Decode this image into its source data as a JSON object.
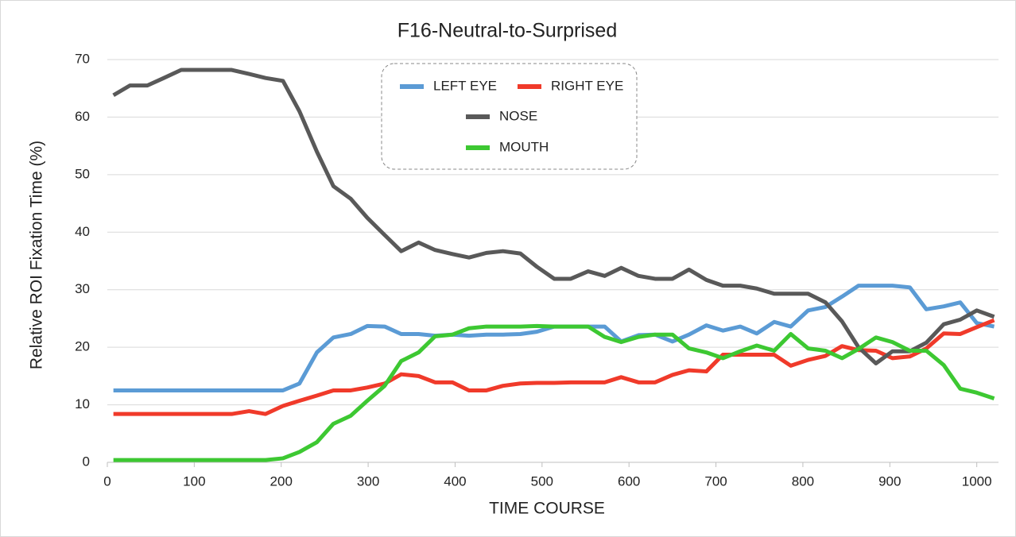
{
  "chart_data": {
    "type": "line",
    "title": "F16-Neutral-to-Surprised",
    "x_label": "TIME  COURSE",
    "y_label": "Relative  ROI  Fixation  Time  (%)",
    "x": [
      7,
      26,
      46,
      65,
      85,
      104,
      124,
      143,
      163,
      182,
      202,
      221,
      241,
      260,
      280,
      299,
      319,
      338,
      358,
      377,
      397,
      416,
      436,
      455,
      475,
      494,
      514,
      533,
      553,
      572,
      591,
      611,
      630,
      650,
      669,
      689,
      708,
      728,
      747,
      767,
      786,
      806,
      826,
      845,
      864,
      884,
      903,
      923,
      942,
      962,
      981,
      1000,
      1020
    ],
    "series": [
      {
        "name": "LEFT EYE",
        "color": "#5b9bd5",
        "values": [
          12.5,
          12.5,
          12.5,
          12.5,
          12.5,
          12.5,
          12.5,
          12.5,
          12.5,
          12.5,
          12.5,
          13.7,
          19.1,
          21.7,
          22.3,
          23.7,
          23.6,
          22.3,
          22.3,
          22,
          22.2,
          22,
          22.2,
          22.2,
          22.3,
          22.7,
          23.6,
          23.6,
          23.6,
          23.6,
          21,
          22.1,
          22.2,
          21,
          22.2,
          23.8,
          22.9,
          23.6,
          22.4,
          24.4,
          23.6,
          26.4,
          27,
          28.8,
          30.7,
          30.7,
          30.7,
          30.4,
          26.6,
          27.1,
          27.8,
          24.2,
          23.6
        ]
      },
      {
        "name": "RIGHT EYE",
        "color": "#f03a2a",
        "values": [
          8.4,
          8.4,
          8.4,
          8.4,
          8.4,
          8.4,
          8.4,
          8.4,
          8.9,
          8.4,
          9.8,
          10.7,
          11.6,
          12.5,
          12.5,
          13,
          13.7,
          15.3,
          15,
          13.9,
          13.9,
          12.5,
          12.5,
          13.3,
          13.7,
          13.8,
          13.8,
          13.9,
          13.9,
          13.9,
          14.8,
          13.9,
          13.9,
          15.2,
          16,
          15.8,
          18.7,
          18.7,
          18.7,
          18.7,
          16.8,
          17.8,
          18.5,
          20.2,
          19.5,
          19.4,
          18.1,
          18.4,
          19.8,
          22.4,
          22.3,
          23.5,
          24.7
        ]
      },
      {
        "name": "NOSE",
        "color": "#595959",
        "values": [
          63.8,
          65.5,
          65.5,
          66.8,
          68.2,
          68.2,
          68.2,
          68.2,
          67.5,
          66.8,
          66.3,
          61,
          54,
          48,
          45.8,
          42.5,
          39.5,
          36.7,
          38.2,
          36.9,
          36.2,
          35.6,
          36.4,
          36.7,
          36.3,
          34,
          31.9,
          31.9,
          33.2,
          32.4,
          33.8,
          32.4,
          31.9,
          31.9,
          33.5,
          31.7,
          30.7,
          30.7,
          30.2,
          29.3,
          29.3,
          29.3,
          27.8,
          24.5,
          20,
          17.2,
          19.3,
          19.3,
          20.8,
          24,
          24.8,
          26.4,
          25.3
        ]
      },
      {
        "name": "MOUTH",
        "color": "#3dc832",
        "values": [
          0.4,
          0.4,
          0.4,
          0.4,
          0.4,
          0.4,
          0.4,
          0.4,
          0.4,
          0.4,
          0.7,
          1.8,
          3.5,
          6.7,
          8.1,
          10.7,
          13.3,
          17.6,
          19.1,
          21.9,
          22.2,
          23.3,
          23.6,
          23.6,
          23.6,
          23.7,
          23.6,
          23.6,
          23.6,
          21.8,
          20.9,
          21.8,
          22.2,
          22.2,
          19.8,
          19.1,
          18.1,
          19.3,
          20.3,
          19.4,
          22.3,
          19.8,
          19.4,
          18.1,
          19.7,
          21.7,
          20.9,
          19.4,
          19.4,
          16.9,
          12.8,
          12.1,
          11.1
        ]
      }
    ],
    "xlim": [
      0,
      1025
    ],
    "ylim": [
      0,
      70
    ],
    "xticks": [
      0,
      100,
      200,
      300,
      400,
      500,
      600,
      700,
      800,
      900,
      1000
    ],
    "yticks": [
      0,
      10,
      20,
      30,
      40,
      50,
      60,
      70
    ],
    "grid": true
  }
}
